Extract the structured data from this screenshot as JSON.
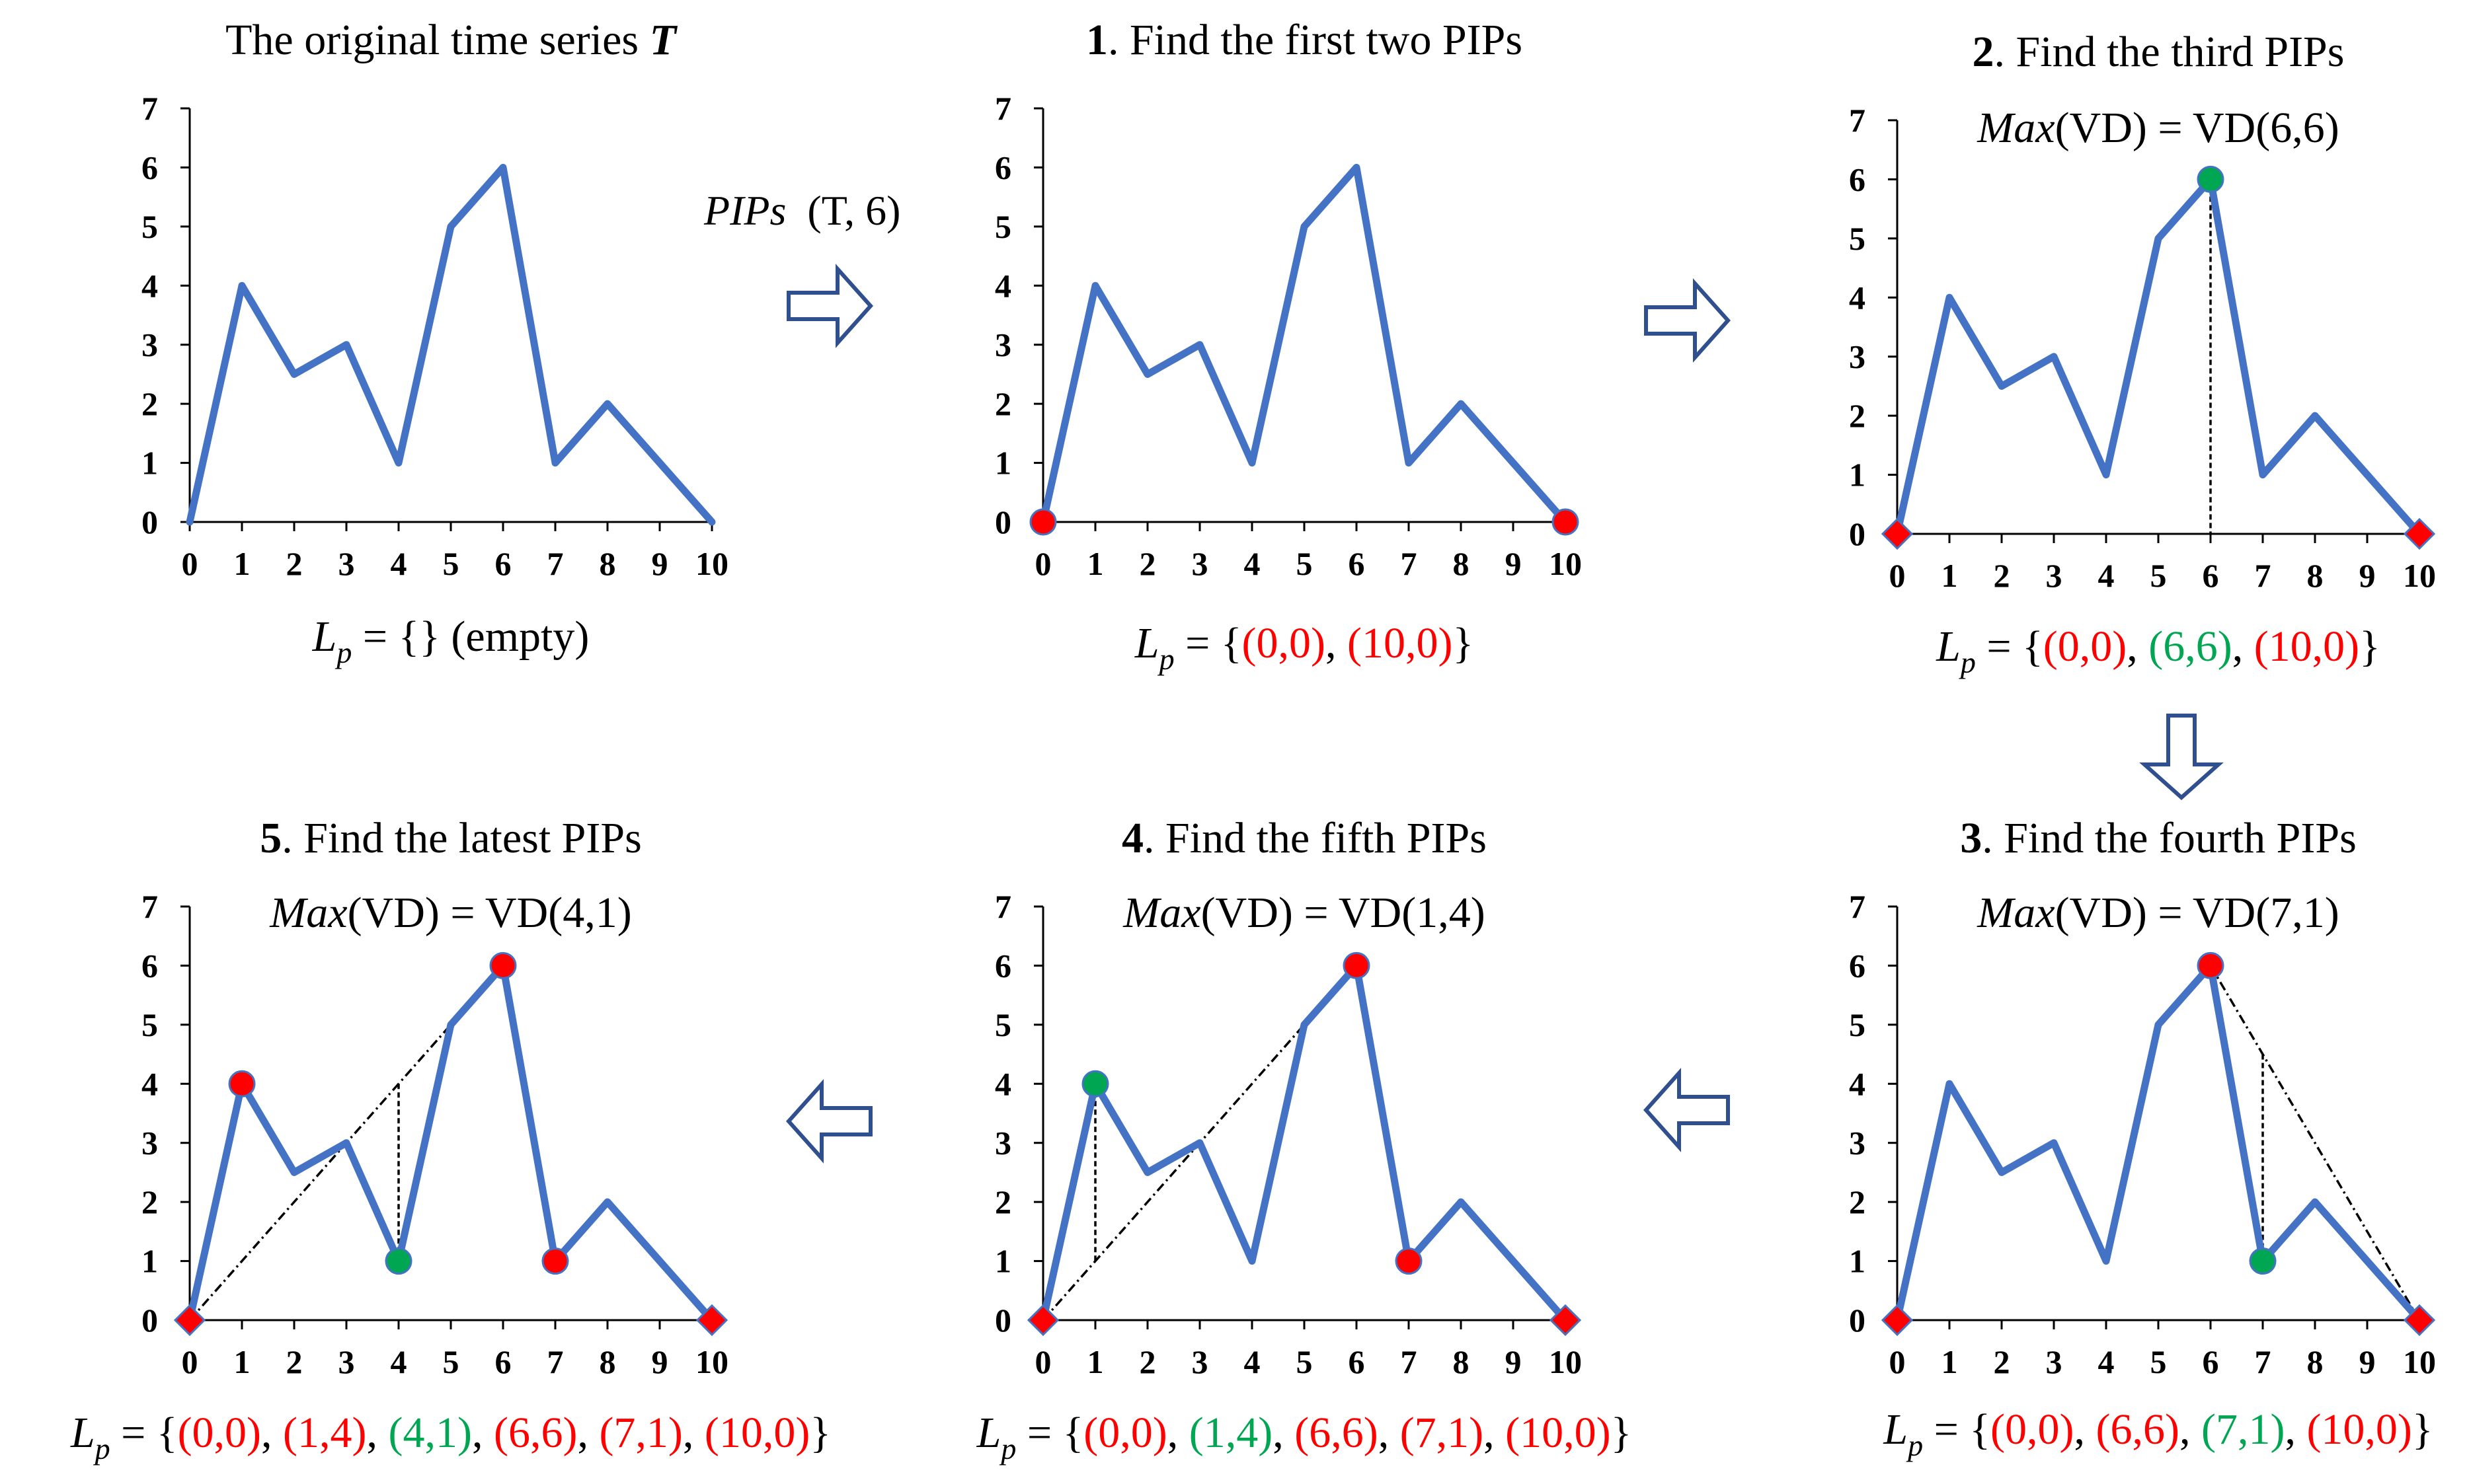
{
  "colors": {
    "series": "#4472C4",
    "red": "#FF0000",
    "green": "#00A651",
    "arrow": "#2F4F8F",
    "dashed": "#000000"
  },
  "flow_label": {
    "name": "PIPs",
    "args": "(T, 6)"
  },
  "chart_data": [
    {
      "type": "line",
      "id": "p0",
      "title": {
        "prefix": "",
        "text": "The original time series ",
        "bold_italic": "T"
      },
      "subtitle": null,
      "x": [
        0,
        1,
        2,
        3,
        4,
        5,
        6,
        7,
        8,
        9,
        10
      ],
      "y": [
        0,
        4,
        2.5,
        3,
        1,
        5,
        6,
        1,
        2,
        1,
        0
      ],
      "xlim": [
        0,
        10
      ],
      "ylim": [
        0,
        7
      ],
      "xticks": [
        "0",
        "1",
        "2",
        "3",
        "4",
        "5",
        "6",
        "7",
        "8",
        "9",
        "10"
      ],
      "yticks": [
        "0",
        "1",
        "2",
        "3",
        "4",
        "5",
        "6",
        "7"
      ],
      "markers": [],
      "dashed": [],
      "lp": {
        "label": "L",
        "sub": "p",
        "parts": [
          {
            "text": " = {} (empty)",
            "color": "black"
          }
        ]
      }
    },
    {
      "type": "line",
      "id": "p1",
      "title": {
        "prefix": "1",
        "text": ". Find the first two PIPs"
      },
      "subtitle": null,
      "x": [
        0,
        1,
        2,
        3,
        4,
        5,
        6,
        7,
        8,
        9,
        10
      ],
      "y": [
        0,
        4,
        2.5,
        3,
        1,
        5,
        6,
        1,
        2,
        1,
        0
      ],
      "xlim": [
        0,
        10
      ],
      "ylim": [
        0,
        7
      ],
      "xticks": [
        "0",
        "1",
        "2",
        "3",
        "4",
        "5",
        "6",
        "7",
        "8",
        "9",
        "10"
      ],
      "yticks": [
        "0",
        "1",
        "2",
        "3",
        "4",
        "5",
        "6",
        "7"
      ],
      "markers": [
        {
          "x": 0,
          "y": 0,
          "shape": "circle",
          "color": "red"
        },
        {
          "x": 10,
          "y": 0,
          "shape": "circle",
          "color": "red"
        }
      ],
      "dashed": [],
      "lp": {
        "label": "L",
        "sub": "p",
        "parts": [
          {
            "text": " = {",
            "color": "black"
          },
          {
            "text": "(0,0)",
            "color": "red"
          },
          {
            "text": ", ",
            "color": "black"
          },
          {
            "text": "(10,0)",
            "color": "red"
          },
          {
            "text": "}",
            "color": "black"
          }
        ]
      }
    },
    {
      "type": "line",
      "id": "p2",
      "title": {
        "prefix": "2",
        "text": ". Find the third PIPs"
      },
      "subtitle": {
        "italic": "Max",
        "text": "(VD) = VD(6,6)"
      },
      "x": [
        0,
        1,
        2,
        3,
        4,
        5,
        6,
        7,
        8,
        9,
        10
      ],
      "y": [
        0,
        4,
        2.5,
        3,
        1,
        5,
        6,
        1,
        2,
        1,
        0
      ],
      "xlim": [
        0,
        10
      ],
      "ylim": [
        0,
        7
      ],
      "xticks": [
        "0",
        "1",
        "2",
        "3",
        "4",
        "5",
        "6",
        "7",
        "8",
        "9",
        "10"
      ],
      "yticks": [
        "0",
        "1",
        "2",
        "3",
        "4",
        "5",
        "6",
        "7"
      ],
      "markers": [
        {
          "x": 0,
          "y": 0,
          "shape": "diamond",
          "color": "red"
        },
        {
          "x": 10,
          "y": 0,
          "shape": "diamond",
          "color": "red"
        },
        {
          "x": 6,
          "y": 6,
          "shape": "circle",
          "color": "green"
        }
      ],
      "dashed": [
        {
          "x1": 6,
          "y1": 6,
          "x2": 6,
          "y2": 0,
          "style": "dense"
        }
      ],
      "lp": {
        "label": "L",
        "sub": "p",
        "parts": [
          {
            "text": " = {",
            "color": "black"
          },
          {
            "text": "(0,0)",
            "color": "red"
          },
          {
            "text": ", ",
            "color": "black"
          },
          {
            "text": "(6,6)",
            "color": "green"
          },
          {
            "text": ", ",
            "color": "black"
          },
          {
            "text": "(10,0)",
            "color": "red"
          },
          {
            "text": "}",
            "color": "black"
          }
        ]
      }
    },
    {
      "type": "line",
      "id": "p3",
      "title": {
        "prefix": "3",
        "text": ". Find the fourth PIPs"
      },
      "subtitle": {
        "italic": "Max",
        "text": "(VD) = VD(7,1)"
      },
      "x": [
        0,
        1,
        2,
        3,
        4,
        5,
        6,
        7,
        8,
        9,
        10
      ],
      "y": [
        0,
        4,
        2.5,
        3,
        1,
        5,
        6,
        1,
        2,
        1,
        0
      ],
      "xlim": [
        0,
        10
      ],
      "ylim": [
        0,
        7
      ],
      "xticks": [
        "0",
        "1",
        "2",
        "3",
        "4",
        "5",
        "6",
        "7",
        "8",
        "9",
        "10"
      ],
      "yticks": [
        "0",
        "1",
        "2",
        "3",
        "4",
        "5",
        "6",
        "7"
      ],
      "markers": [
        {
          "x": 0,
          "y": 0,
          "shape": "diamond",
          "color": "red"
        },
        {
          "x": 10,
          "y": 0,
          "shape": "diamond",
          "color": "red"
        },
        {
          "x": 6,
          "y": 6,
          "shape": "circle",
          "color": "red"
        },
        {
          "x": 7,
          "y": 1,
          "shape": "circle",
          "color": "green"
        }
      ],
      "dashed": [
        {
          "x1": 6,
          "y1": 6,
          "x2": 10,
          "y2": 0,
          "style": "dashdot"
        },
        {
          "x1": 7,
          "y1": 4.5,
          "x2": 7,
          "y2": 1,
          "style": "dense"
        }
      ],
      "lp": {
        "label": "L",
        "sub": "p",
        "parts": [
          {
            "text": " = {",
            "color": "black"
          },
          {
            "text": "(0,0)",
            "color": "red"
          },
          {
            "text": ", ",
            "color": "black"
          },
          {
            "text": "(6,6)",
            "color": "red"
          },
          {
            "text": ", ",
            "color": "black"
          },
          {
            "text": "(7,1)",
            "color": "green"
          },
          {
            "text": ", ",
            "color": "black"
          },
          {
            "text": "(10,0)",
            "color": "red"
          },
          {
            "text": "}",
            "color": "black"
          }
        ]
      }
    },
    {
      "type": "line",
      "id": "p4",
      "title": {
        "prefix": "4",
        "text": ". Find the fifth PIPs"
      },
      "subtitle": {
        "italic": "Max",
        "text": "(VD) = VD(1,4)"
      },
      "x": [
        0,
        1,
        2,
        3,
        4,
        5,
        6,
        7,
        8,
        9,
        10
      ],
      "y": [
        0,
        4,
        2.5,
        3,
        1,
        5,
        6,
        1,
        2,
        1,
        0
      ],
      "xlim": [
        0,
        10
      ],
      "ylim": [
        0,
        7
      ],
      "xticks": [
        "0",
        "1",
        "2",
        "3",
        "4",
        "5",
        "6",
        "7",
        "8",
        "9",
        "10"
      ],
      "yticks": [
        "0",
        "1",
        "2",
        "3",
        "4",
        "5",
        "6",
        "7"
      ],
      "markers": [
        {
          "x": 0,
          "y": 0,
          "shape": "diamond",
          "color": "red"
        },
        {
          "x": 10,
          "y": 0,
          "shape": "diamond",
          "color": "red"
        },
        {
          "x": 6,
          "y": 6,
          "shape": "circle",
          "color": "red"
        },
        {
          "x": 7,
          "y": 1,
          "shape": "circle",
          "color": "red"
        },
        {
          "x": 1,
          "y": 4,
          "shape": "circle",
          "color": "green"
        }
      ],
      "dashed": [
        {
          "x1": 0,
          "y1": 0,
          "x2": 6,
          "y2": 6,
          "style": "dashdot"
        },
        {
          "x1": 1,
          "y1": 4,
          "x2": 1,
          "y2": 1,
          "style": "dense"
        }
      ],
      "lp": {
        "label": "L",
        "sub": "p",
        "parts": [
          {
            "text": " = {",
            "color": "black"
          },
          {
            "text": "(0,0)",
            "color": "red"
          },
          {
            "text": ", ",
            "color": "black"
          },
          {
            "text": "(1,4)",
            "color": "green"
          },
          {
            "text": ", ",
            "color": "black"
          },
          {
            "text": "(6,6)",
            "color": "red"
          },
          {
            "text": ", ",
            "color": "black"
          },
          {
            "text": "(7,1)",
            "color": "red"
          },
          {
            "text": ", ",
            "color": "black"
          },
          {
            "text": "(10,0)",
            "color": "red"
          },
          {
            "text": "}",
            "color": "black"
          }
        ]
      }
    },
    {
      "type": "line",
      "id": "p5",
      "title": {
        "prefix": "5",
        "text": ". Find the latest PIPs"
      },
      "subtitle": {
        "italic": "Max",
        "text": "(VD) = VD(4,1)"
      },
      "x": [
        0,
        1,
        2,
        3,
        4,
        5,
        6,
        7,
        8,
        9,
        10
      ],
      "y": [
        0,
        4,
        2.5,
        3,
        1,
        5,
        6,
        1,
        2,
        1,
        0
      ],
      "xlim": [
        0,
        10
      ],
      "ylim": [
        0,
        7
      ],
      "xticks": [
        "0",
        "1",
        "2",
        "3",
        "4",
        "5",
        "6",
        "7",
        "8",
        "9",
        "10"
      ],
      "yticks": [
        "0",
        "1",
        "2",
        "3",
        "4",
        "5",
        "6",
        "7"
      ],
      "markers": [
        {
          "x": 0,
          "y": 0,
          "shape": "diamond",
          "color": "red"
        },
        {
          "x": 10,
          "y": 0,
          "shape": "diamond",
          "color": "red"
        },
        {
          "x": 6,
          "y": 6,
          "shape": "circle",
          "color": "red"
        },
        {
          "x": 7,
          "y": 1,
          "shape": "circle",
          "color": "red"
        },
        {
          "x": 1,
          "y": 4,
          "shape": "circle",
          "color": "red"
        },
        {
          "x": 4,
          "y": 1,
          "shape": "circle",
          "color": "green"
        }
      ],
      "dashed": [
        {
          "x1": 0,
          "y1": 0,
          "x2": 6,
          "y2": 6,
          "style": "dashdot"
        },
        {
          "x1": 4,
          "y1": 4,
          "x2": 4,
          "y2": 1,
          "style": "dense"
        }
      ],
      "lp": {
        "label": "L",
        "sub": "p",
        "parts": [
          {
            "text": " = {",
            "color": "black"
          },
          {
            "text": "(0,0)",
            "color": "red"
          },
          {
            "text": ", ",
            "color": "black"
          },
          {
            "text": "(1,4)",
            "color": "red"
          },
          {
            "text": ", ",
            "color": "black"
          },
          {
            "text": "(4,1)",
            "color": "green"
          },
          {
            "text": ", ",
            "color": "black"
          },
          {
            "text": "(6,6)",
            "color": "red"
          },
          {
            "text": ", ",
            "color": "black"
          },
          {
            "text": "(7,1)",
            "color": "red"
          },
          {
            "text": ", ",
            "color": "black"
          },
          {
            "text": "(10,0)",
            "color": "red"
          },
          {
            "text": "}",
            "color": "black"
          }
        ]
      }
    }
  ],
  "arrows": [
    {
      "name": "arrow-right-1",
      "direction": "right"
    },
    {
      "name": "arrow-right-2",
      "direction": "right"
    },
    {
      "name": "arrow-down",
      "direction": "down"
    },
    {
      "name": "arrow-left-1",
      "direction": "left"
    },
    {
      "name": "arrow-left-2",
      "direction": "left"
    }
  ]
}
